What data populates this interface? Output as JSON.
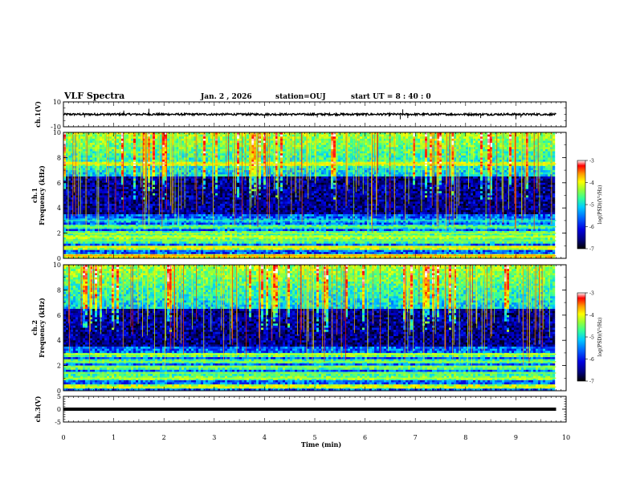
{
  "header": {
    "title": "VLF Spectra",
    "date": "Jan. 2 , 2026",
    "station": "station=OUJ",
    "start_ut": "start UT =  8 : 40 : 0"
  },
  "colors": {
    "background": "#ffffff",
    "axis": "#000000",
    "colormap": [
      "#000000",
      "#00007a",
      "#0000e0",
      "#0066ff",
      "#00ccff",
      "#33ff99",
      "#99ff33",
      "#ffff00",
      "#ff9900",
      "#ff0000",
      "#ffffff"
    ]
  },
  "chart_data": [
    {
      "type": "line",
      "id": "ch1-waveform",
      "ylabel": "ch.1(V)",
      "xlabel": "",
      "xlim": [
        0,
        10
      ],
      "ylim": [
        -10,
        10
      ],
      "yticks": [
        "10",
        "-10"
      ],
      "data_extent_min": 9.8,
      "baseline_v": 0,
      "spikes": [
        {
          "x": 0.42,
          "y": -2.5
        },
        {
          "x": 1.2,
          "y": 3
        },
        {
          "x": 1.7,
          "y": 4.5
        },
        {
          "x": 4.0,
          "y": -3
        },
        {
          "x": 5.05,
          "y": -2.5
        },
        {
          "x": 6.7,
          "y": -4
        },
        {
          "x": 6.75,
          "y": 4
        },
        {
          "x": 6.85,
          "y": -3
        },
        {
          "x": 8.3,
          "y": -3
        },
        {
          "x": 9.0,
          "y": -4
        },
        {
          "x": 9.1,
          "y": -2.5
        }
      ]
    },
    {
      "type": "heatmap",
      "id": "ch1-spectrogram",
      "ylabel": "ch.1\nFrequency (kHz)",
      "xlim": [
        0,
        10
      ],
      "ylim": [
        0,
        10
      ],
      "data_extent_min": 9.8,
      "xticks": [
        "0",
        "1",
        "2",
        "3",
        "4",
        "5",
        "6",
        "7",
        "8",
        "9",
        "10"
      ],
      "yticks": [
        "0",
        "2",
        "4",
        "6",
        "8",
        "10"
      ],
      "colorbar": {
        "label": "log(PSD)(V²/Hz)",
        "range": [
          -7,
          -3
        ],
        "ticks": [
          "-3",
          "-4",
          "-5",
          "-6",
          "-7"
        ]
      },
      "bands_khz": [
        {
          "f": 0.2,
          "level": -4.2
        },
        {
          "f": 0.9,
          "level": -4.5
        },
        {
          "f": 1.4,
          "level": -5.0
        },
        {
          "f": 1.7,
          "level": -4.7
        },
        {
          "f": 2.0,
          "level": -4.9
        },
        {
          "f": 2.5,
          "level": -5.1
        },
        {
          "f": 3.0,
          "level": -5.5
        },
        {
          "f": 7.5,
          "level": -4.5
        }
      ]
    },
    {
      "type": "heatmap",
      "id": "ch2-spectrogram",
      "ylabel": "ch.2\nFrequency (kHz)",
      "xlim": [
        0,
        10
      ],
      "ylim": [
        0,
        10
      ],
      "data_extent_min": 9.8,
      "xticks": [
        "0",
        "1",
        "2",
        "3",
        "4",
        "5",
        "6",
        "7",
        "8",
        "9",
        "10"
      ],
      "yticks": [
        "0",
        "2",
        "4",
        "6",
        "8",
        "10"
      ],
      "colorbar": {
        "label": "log(PSD)(V²/Hz)",
        "range": [
          -7,
          -3
        ],
        "ticks": [
          "-3",
          "-4",
          "-5",
          "-6",
          "-7"
        ]
      },
      "bands_khz": [
        {
          "f": 0.3,
          "level": -4.5
        },
        {
          "f": 1.0,
          "level": -4.8
        },
        {
          "f": 1.4,
          "level": -5.0
        },
        {
          "f": 1.9,
          "level": -4.9
        },
        {
          "f": 2.3,
          "level": -5.0
        },
        {
          "f": 2.9,
          "level": -4.8
        }
      ]
    },
    {
      "type": "line",
      "id": "ch3-signal",
      "ylabel": "ch.3(V)",
      "xlabel": "Time (min)",
      "xlim": [
        0,
        10
      ],
      "ylim": [
        -5,
        5
      ],
      "yticks": [
        "5",
        "0",
        "-5"
      ],
      "xticks": [
        "0",
        "1",
        "2",
        "3",
        "4",
        "5",
        "6",
        "7",
        "8",
        "9",
        "10"
      ],
      "data_extent_min": 9.8,
      "level_v": 0
    }
  ]
}
